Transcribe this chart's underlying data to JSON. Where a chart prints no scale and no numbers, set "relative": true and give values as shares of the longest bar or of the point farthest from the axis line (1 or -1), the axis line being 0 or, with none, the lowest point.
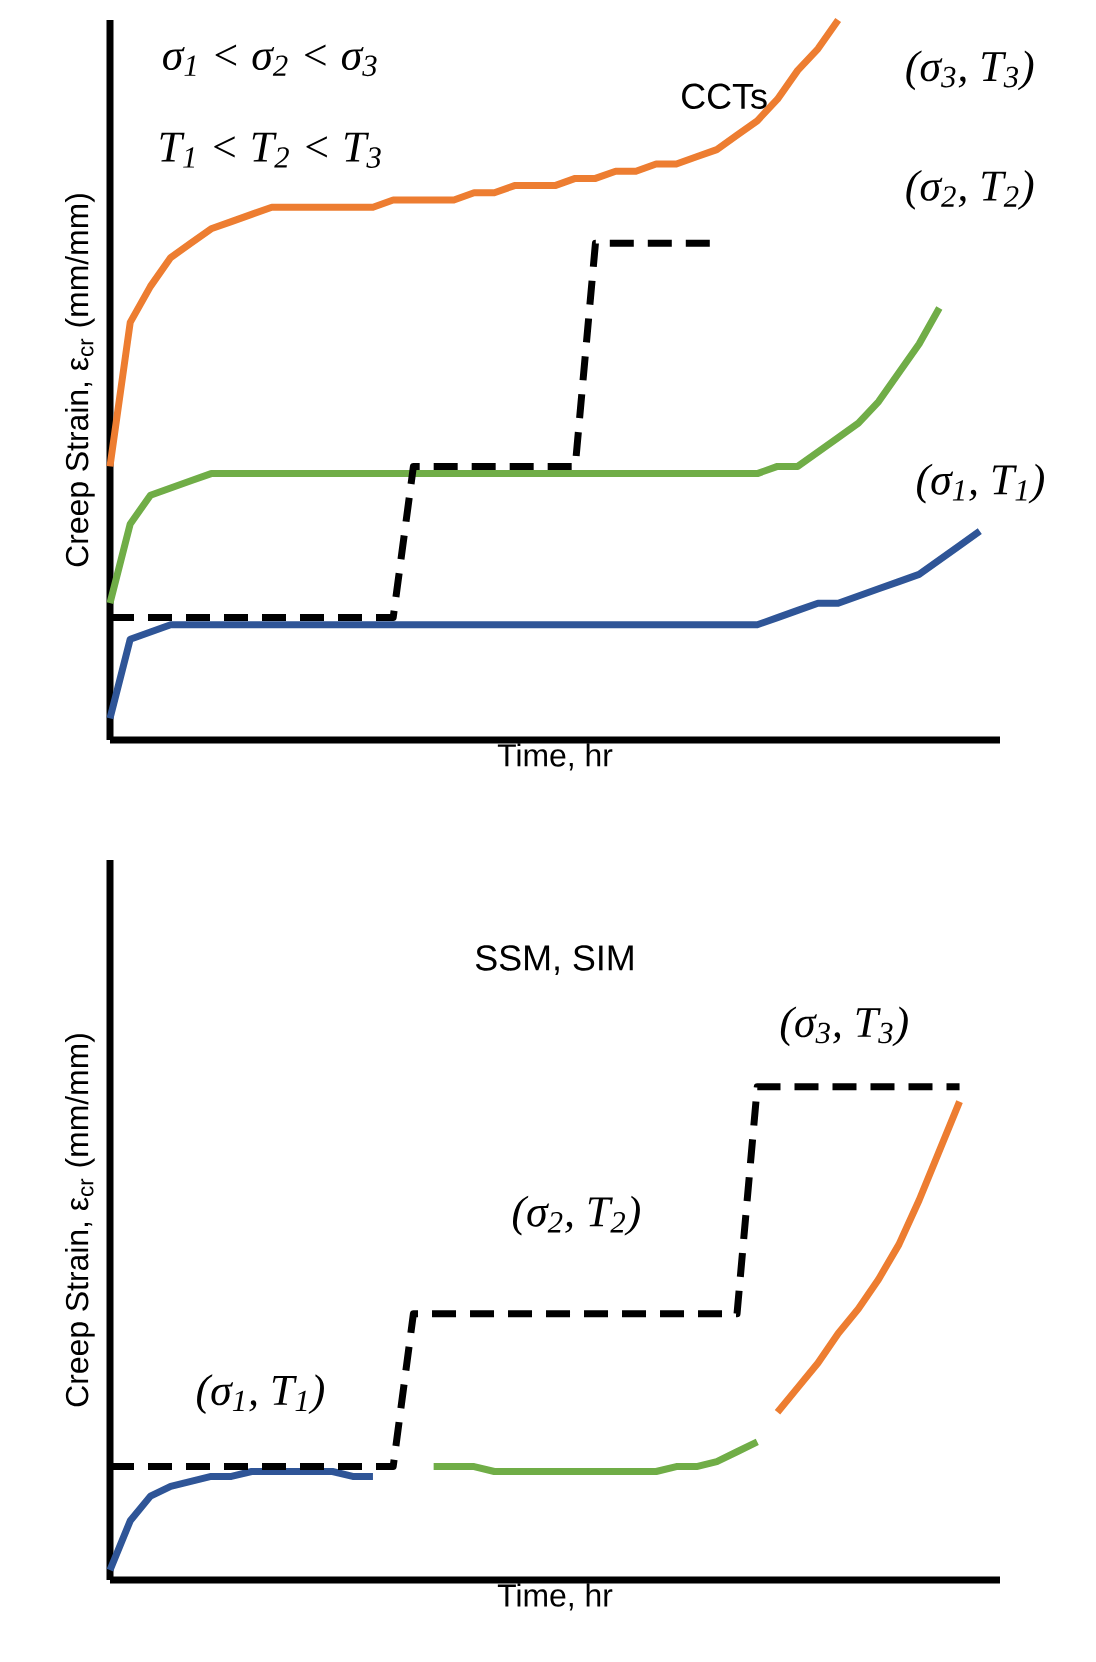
{
  "chart_data": [
    {
      "type": "line",
      "relative": true,
      "xlabel": "Time, hr",
      "ylabel": "Creep Strain, ε$_{cr}$ (mm/mm)",
      "marker": "none",
      "categories": [
        null,
        null,
        null,
        null,
        null,
        null,
        null,
        null,
        null,
        null,
        null,
        null,
        null,
        null,
        null,
        null,
        null,
        null,
        null,
        null,
        null,
        null,
        null,
        null,
        null,
        null,
        null,
        null,
        null,
        null,
        null,
        null,
        null,
        null,
        null,
        null,
        null,
        null,
        null,
        null,
        null,
        null,
        null,
        null,
        null
      ],
      "series": [
        {
          "color": "#ed7d31",
          "values": [
            0.38,
            0.58,
            0.63,
            0.67,
            0.69,
            0.71,
            0.72,
            0.73,
            0.74,
            0.74,
            0.74,
            0.74,
            0.74,
            0.74,
            0.75,
            0.75,
            0.75,
            0.75,
            0.76,
            0.76,
            0.77,
            0.77,
            0.77,
            0.78,
            0.78,
            0.79,
            0.79,
            0.8,
            0.8,
            0.81,
            0.82,
            0.84,
            0.86,
            0.89,
            0.93,
            0.96,
            1.0,
            null,
            null,
            null,
            null,
            null,
            null,
            null,
            null
          ]
        },
        {
          "color": "#70ad47",
          "values": [
            0.19,
            0.3,
            0.34,
            0.35,
            0.36,
            0.37,
            0.37,
            0.37,
            0.37,
            0.37,
            0.37,
            0.37,
            0.37,
            0.37,
            0.37,
            0.37,
            0.37,
            0.37,
            0.37,
            0.37,
            0.37,
            0.37,
            0.37,
            0.37,
            0.37,
            0.37,
            0.37,
            0.37,
            0.37,
            0.37,
            0.37,
            0.37,
            0.37,
            0.38,
            0.38,
            0.4,
            0.42,
            0.44,
            0.47,
            0.51,
            0.55,
            0.6,
            null,
            null,
            null
          ]
        },
        {
          "color": "#2f5597",
          "values": [
            0.03,
            0.14,
            0.15,
            0.16,
            0.16,
            0.16,
            0.16,
            0.16,
            0.16,
            0.16,
            0.16,
            0.16,
            0.16,
            0.16,
            0.16,
            0.16,
            0.16,
            0.16,
            0.16,
            0.16,
            0.16,
            0.16,
            0.16,
            0.16,
            0.16,
            0.16,
            0.16,
            0.16,
            0.16,
            0.16,
            0.16,
            0.16,
            0.16,
            0.17,
            0.18,
            0.19,
            0.19,
            0.2,
            0.21,
            0.22,
            0.23,
            0.25,
            0.27,
            0.29,
            null
          ]
        },
        {
          "color": "#000000",
          "line_style": "dashed",
          "values": [
            0.17,
            0.17,
            0.17,
            0.17,
            0.17,
            0.17,
            0.17,
            0.17,
            0.17,
            0.17,
            0.17,
            0.17,
            0.17,
            0.17,
            0.17,
            0.38,
            0.38,
            0.38,
            0.38,
            0.38,
            0.38,
            0.38,
            0.38,
            0.38,
            0.69,
            0.69,
            0.69,
            0.69,
            0.69,
            0.69,
            0.69,
            null,
            null,
            null,
            null,
            null,
            null,
            null,
            null,
            null,
            null,
            null,
            null,
            null,
            null
          ]
        }
      ],
      "annotations": [
        "σ$_{1}$ < σ$_{2}$ < σ$_{3}$",
        "T$_{1}$ < T$_{2}$ < T$_{3}$",
        "CCTs",
        "(σ$_{3}$, T$_{3}$)",
        "(σ$_{2}$, T$_{2}$)",
        "(σ$_{1}$, T$_{1}$)"
      ]
    },
    {
      "type": "line",
      "relative": true,
      "xlabel": "Time, hr",
      "ylabel": "Creep Strain, ε$_{cr}$ (mm/mm)",
      "marker": "none",
      "categories": [
        null,
        null,
        null,
        null,
        null,
        null,
        null,
        null,
        null,
        null,
        null,
        null,
        null,
        null,
        null,
        null,
        null,
        null,
        null,
        null,
        null,
        null,
        null,
        null,
        null,
        null,
        null,
        null,
        null,
        null,
        null,
        null,
        null,
        null,
        null,
        null,
        null,
        null,
        null,
        null,
        null,
        null,
        null,
        null,
        null
      ],
      "series": [
        {
          "color": "#2f5597",
          "values": [
            0.02,
            0.12,
            0.17,
            0.19,
            0.2,
            0.21,
            0.21,
            0.22,
            0.22,
            0.22,
            0.22,
            0.22,
            0.21,
            0.21,
            null,
            null,
            null,
            null,
            null,
            null,
            null,
            null,
            null,
            null,
            null,
            null,
            null,
            null,
            null,
            null,
            null,
            null,
            null,
            null,
            null,
            null,
            null,
            null,
            null,
            null,
            null,
            null,
            null,
            null,
            null
          ]
        },
        {
          "color": "#70ad47",
          "values": [
            null,
            null,
            null,
            null,
            null,
            null,
            null,
            null,
            null,
            null,
            null,
            null,
            null,
            null,
            null,
            null,
            0.23,
            0.23,
            0.23,
            0.22,
            0.22,
            0.22,
            0.22,
            0.22,
            0.22,
            0.22,
            0.22,
            0.22,
            0.23,
            0.23,
            0.24,
            0.26,
            0.28,
            null,
            null,
            null,
            null,
            null,
            null,
            null,
            null,
            null,
            null,
            null,
            null
          ]
        },
        {
          "color": "#ed7d31",
          "values": [
            null,
            null,
            null,
            null,
            null,
            null,
            null,
            null,
            null,
            null,
            null,
            null,
            null,
            null,
            null,
            null,
            null,
            null,
            null,
            null,
            null,
            null,
            null,
            null,
            null,
            null,
            null,
            null,
            null,
            null,
            null,
            null,
            null,
            0.34,
            0.39,
            0.44,
            0.5,
            0.55,
            0.61,
            0.68,
            0.77,
            0.87,
            0.97,
            null,
            null
          ]
        },
        {
          "color": "#000000",
          "line_style": "dashed",
          "values": [
            0.23,
            0.23,
            0.23,
            0.23,
            0.23,
            0.23,
            0.23,
            0.23,
            0.23,
            0.23,
            0.23,
            0.23,
            0.23,
            0.23,
            0.23,
            0.54,
            0.54,
            0.54,
            0.54,
            0.54,
            0.54,
            0.54,
            0.54,
            0.54,
            0.54,
            0.54,
            0.54,
            0.54,
            0.54,
            0.54,
            0.54,
            0.54,
            1.0,
            1.0,
            1.0,
            1.0,
            1.0,
            1.0,
            1.0,
            1.0,
            1.0,
            1.0,
            1.0,
            null,
            null
          ]
        }
      ],
      "annotations": [
        "SSM, SIM",
        "(σ$_{1}$, T$_{1}$)",
        "(σ$_{2}$, T$_{2}$)",
        "(σ$_{3}$, T$_{3}$)"
      ]
    }
  ]
}
